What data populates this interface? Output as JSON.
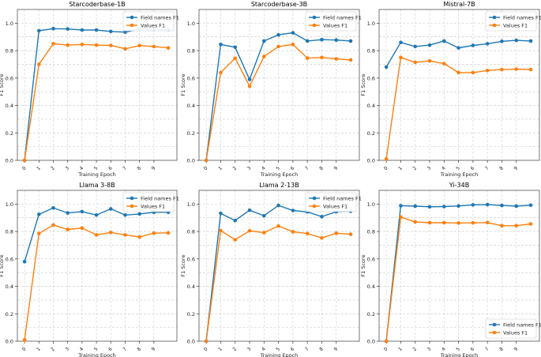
{
  "figure": {
    "xlabel": "Training Epoch",
    "ylabel": "F1 Score"
  },
  "colors": {
    "field_names": "#1f77b4",
    "values": "#ff7f0e"
  },
  "chart_data": [
    {
      "type": "line",
      "title": "Starcoderbase-1B",
      "xlabel": "Training Epoch",
      "ylabel": "F1 Score",
      "x": [
        0,
        1,
        2,
        3,
        4,
        5,
        6,
        7,
        8,
        9,
        10
      ],
      "xticks": [
        "0",
        "1",
        "2",
        "3",
        "4",
        "5",
        "6",
        "7",
        "8",
        "9"
      ],
      "yticks": [
        "0.0",
        "0.2",
        "0.4",
        "0.6",
        "0.8",
        "1.0"
      ],
      "ylim": [
        0,
        1.1
      ],
      "grid": true,
      "legend": "top-right",
      "series": [
        {
          "name": "Field names F1",
          "values": [
            0.0,
            0.945,
            0.96,
            0.958,
            0.95,
            0.95,
            0.94,
            0.935,
            0.957,
            0.955,
            0.955
          ]
        },
        {
          "name": "Values F1",
          "values": [
            0.0,
            0.7,
            0.85,
            0.84,
            0.845,
            0.84,
            0.838,
            0.813,
            0.837,
            0.83,
            0.82
          ]
        }
      ]
    },
    {
      "type": "line",
      "title": "Starcoderbase-3B",
      "xlabel": "Training Epoch",
      "ylabel": "F1 Score",
      "x": [
        0,
        1,
        2,
        3,
        4,
        5,
        6,
        7,
        8,
        9,
        10
      ],
      "xticks": [
        "0",
        "1",
        "2",
        "3",
        "4",
        "5",
        "6",
        "7",
        "8",
        "9"
      ],
      "yticks": [
        "0.0",
        "0.2",
        "0.4",
        "0.6",
        "0.8",
        "1.0"
      ],
      "ylim": [
        0,
        1.1
      ],
      "grid": true,
      "legend": "top-right",
      "series": [
        {
          "name": "Field names F1",
          "values": [
            0.0,
            0.845,
            0.825,
            0.59,
            0.87,
            0.915,
            0.93,
            0.87,
            0.88,
            0.877,
            0.87
          ]
        },
        {
          "name": "Values F1",
          "values": [
            0.0,
            0.64,
            0.745,
            0.54,
            0.757,
            0.83,
            0.845,
            0.745,
            0.75,
            0.74,
            0.732
          ]
        }
      ]
    },
    {
      "type": "line",
      "title": "Mistral-7B",
      "xlabel": "Training Epoch",
      "ylabel": "F1 Score",
      "x": [
        0,
        1,
        2,
        3,
        4,
        5,
        6,
        7,
        8,
        9,
        10
      ],
      "xticks": [
        "0",
        "1",
        "2",
        "3",
        "4",
        "5",
        "6",
        "7",
        "8",
        "9"
      ],
      "yticks": [
        "0.0",
        "0.2",
        "0.4",
        "0.6",
        "0.8",
        "1.0"
      ],
      "ylim": [
        0,
        1.1
      ],
      "grid": true,
      "legend": "top-right",
      "series": [
        {
          "name": "Field names F1",
          "values": [
            0.68,
            0.86,
            0.83,
            0.84,
            0.87,
            0.82,
            0.838,
            0.85,
            0.868,
            0.875,
            0.87
          ]
        },
        {
          "name": "Values F1",
          "values": [
            0.01,
            0.75,
            0.715,
            0.725,
            0.705,
            0.64,
            0.64,
            0.655,
            0.662,
            0.665,
            0.662
          ]
        }
      ]
    },
    {
      "type": "line",
      "title": "Llama 3-8B",
      "xlabel": "Training Epoch",
      "ylabel": "F1 Score",
      "x": [
        0,
        1,
        2,
        3,
        4,
        5,
        6,
        7,
        8,
        9,
        10
      ],
      "xticks": [
        "0",
        "1",
        "2",
        "3",
        "4",
        "5",
        "6",
        "7",
        "8",
        "9"
      ],
      "yticks": [
        "0.0",
        "0.2",
        "0.4",
        "0.6",
        "0.8",
        "1.0"
      ],
      "ylim": [
        0,
        1.1
      ],
      "grid": true,
      "legend": "top-right",
      "series": [
        {
          "name": "Field names F1",
          "values": [
            0.58,
            0.925,
            0.972,
            0.935,
            0.945,
            0.92,
            0.965,
            0.92,
            0.928,
            0.94,
            0.94
          ]
        },
        {
          "name": "Values F1",
          "values": [
            0.01,
            0.785,
            0.847,
            0.815,
            0.825,
            0.775,
            0.793,
            0.775,
            0.76,
            0.788,
            0.79
          ]
        }
      ]
    },
    {
      "type": "line",
      "title": "Llama 2-13B",
      "xlabel": "Training Epoch",
      "ylabel": "F1 Score",
      "x": [
        0,
        1,
        2,
        3,
        4,
        5,
        6,
        7,
        8,
        9,
        10
      ],
      "xticks": [
        "0",
        "1",
        "2",
        "3",
        "4",
        "5",
        "6",
        "7",
        "8",
        "9"
      ],
      "yticks": [
        "0.0",
        "0.2",
        "0.4",
        "0.6",
        "0.8",
        "1.0"
      ],
      "ylim": [
        0,
        1.1
      ],
      "grid": true,
      "legend": "top-right",
      "series": [
        {
          "name": "Field names F1",
          "values": [
            0.0,
            0.932,
            0.88,
            0.955,
            0.915,
            0.99,
            0.953,
            0.943,
            0.908,
            0.944,
            0.948
          ]
        },
        {
          "name": "Values F1",
          "values": [
            0.0,
            0.807,
            0.74,
            0.805,
            0.792,
            0.84,
            0.798,
            0.785,
            0.753,
            0.787,
            0.78
          ]
        }
      ]
    },
    {
      "type": "line",
      "title": "Yi-34B",
      "xlabel": "Training Epoch",
      "ylabel": "F1 Score",
      "x": [
        0,
        1,
        2,
        3,
        4,
        5,
        6,
        7,
        8,
        9,
        10
      ],
      "xticks": [
        "0",
        "1",
        "2",
        "3",
        "4",
        "5",
        "6",
        "7",
        "8",
        "9"
      ],
      "yticks": [
        "0.0",
        "0.2",
        "0.4",
        "0.6",
        "0.8",
        "1.0"
      ],
      "ylim": [
        0,
        1.1
      ],
      "grid": true,
      "legend": "bottom-right",
      "series": [
        {
          "name": "Field names F1",
          "values": [
            0.0,
            0.988,
            0.985,
            0.98,
            0.982,
            0.986,
            0.994,
            0.996,
            0.99,
            0.985,
            0.992
          ]
        },
        {
          "name": "Values F1",
          "values": [
            0.0,
            0.905,
            0.87,
            0.864,
            0.864,
            0.862,
            0.863,
            0.865,
            0.842,
            0.842,
            0.855
          ]
        }
      ]
    }
  ]
}
